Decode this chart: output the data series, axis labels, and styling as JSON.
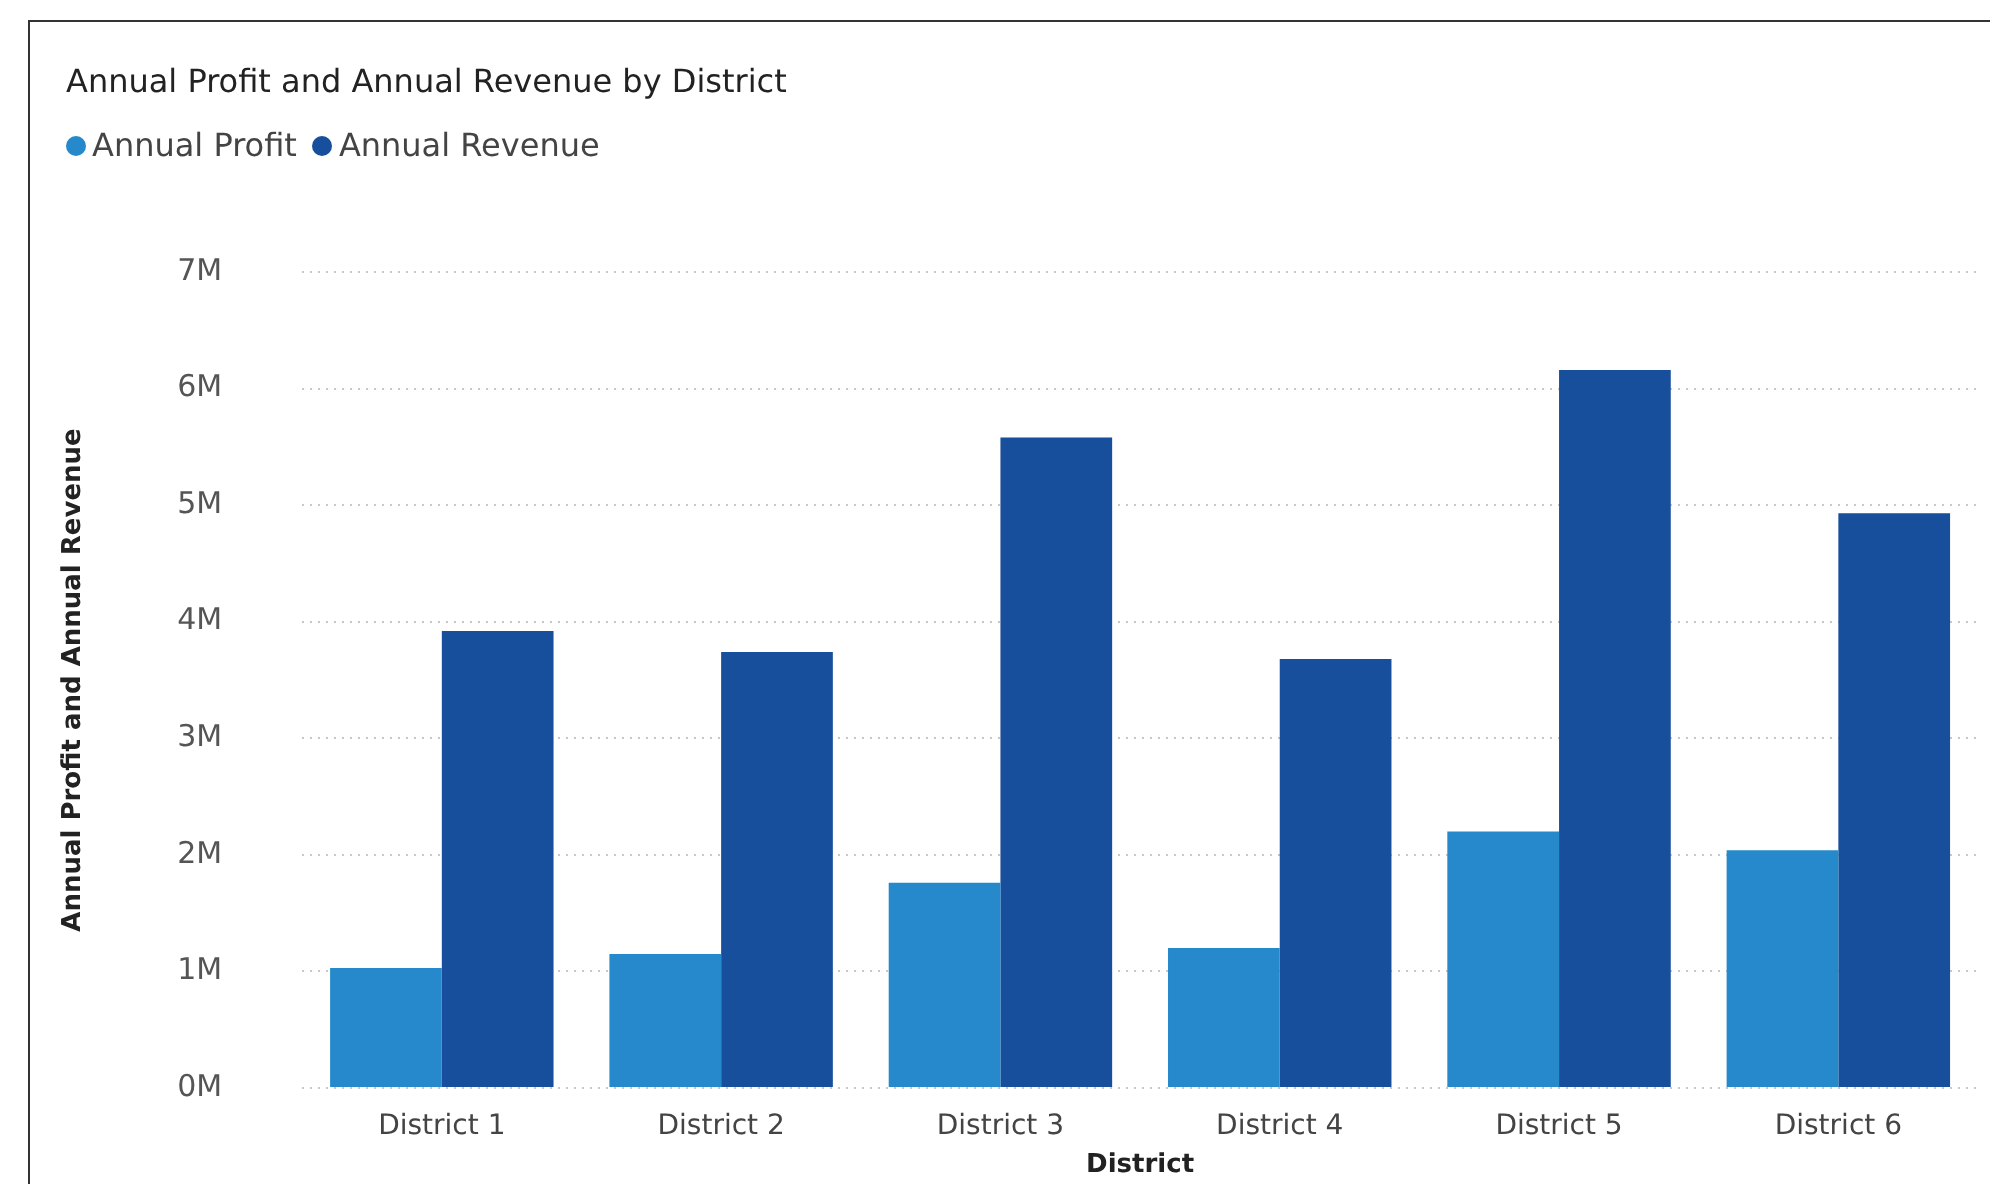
{
  "chart_data": {
    "type": "bar",
    "title": "Annual Profit and Annual Revenue by District",
    "xlabel": "District",
    "ylabel": "Annual Profit and Annual Revenue",
    "categories": [
      "District 1",
      "District 2",
      "District 3",
      "District 4",
      "District 5",
      "District 6"
    ],
    "series": [
      {
        "name": "Annual Profit",
        "color": "#2589cb",
        "values": [
          1030000,
          1150000,
          1760000,
          1200000,
          2200000,
          2040000
        ]
      },
      {
        "name": "Annual Revenue",
        "color": "#174f9c",
        "values": [
          3920000,
          3740000,
          5580000,
          3680000,
          6160000,
          4930000
        ]
      }
    ],
    "ylim": [
      0,
      7000000
    ],
    "yticks": [
      {
        "value": 0,
        "label": "0M"
      },
      {
        "value": 1000000,
        "label": "1M"
      },
      {
        "value": 2000000,
        "label": "2M"
      },
      {
        "value": 3000000,
        "label": "3M"
      },
      {
        "value": 4000000,
        "label": "4M"
      },
      {
        "value": 5000000,
        "label": "5M"
      },
      {
        "value": 6000000,
        "label": "6M"
      },
      {
        "value": 7000000,
        "label": "7M"
      }
    ],
    "grid": "y",
    "legend": "top left"
  }
}
